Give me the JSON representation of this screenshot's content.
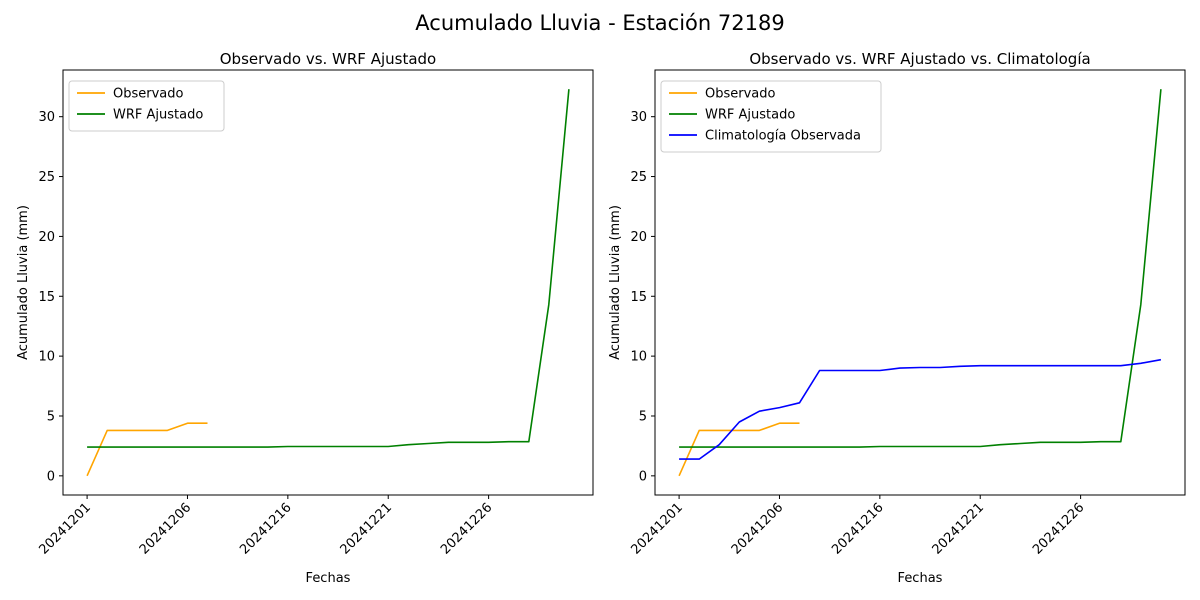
{
  "figure": {
    "suptitle": "Acumulado Lluvia - Estación 72189"
  },
  "chart_data": [
    {
      "type": "line",
      "title": "Observado vs. WRF Ajustado",
      "xlabel": "Fechas",
      "ylabel": "Acumulado Lluvia (mm)",
      "x_tick_labels": [
        "20241201",
        "20241206",
        "20241216",
        "20241221",
        "20241226"
      ],
      "y_ticks": [
        0,
        5,
        10,
        15,
        20,
        25,
        30
      ],
      "ylim": [
        -1.6,
        33.9
      ],
      "legend_position": "top-left",
      "grid": false,
      "series": [
        {
          "name": "Observado",
          "color": "#ffa500",
          "points": [
            [
              0,
              0
            ],
            [
              1,
              3.8
            ],
            [
              2,
              3.8
            ],
            [
              3,
              3.8
            ],
            [
              4,
              3.8
            ],
            [
              5,
              4.4
            ],
            [
              6,
              4.4
            ]
          ]
        },
        {
          "name": "WRF Ajustado",
          "color": "#008000",
          "points": [
            [
              0,
              2.4
            ],
            [
              1,
              2.4
            ],
            [
              2,
              2.4
            ],
            [
              3,
              2.4
            ],
            [
              4,
              2.4
            ],
            [
              5,
              2.4
            ],
            [
              6,
              2.4
            ],
            [
              7,
              2.4
            ],
            [
              8,
              2.4
            ],
            [
              9,
              2.4
            ],
            [
              10,
              2.45
            ],
            [
              11,
              2.45
            ],
            [
              12,
              2.45
            ],
            [
              13,
              2.45
            ],
            [
              14,
              2.45
            ],
            [
              15,
              2.45
            ],
            [
              16,
              2.6
            ],
            [
              17,
              2.7
            ],
            [
              18,
              2.8
            ],
            [
              19,
              2.8
            ],
            [
              20,
              2.8
            ],
            [
              21,
              2.85
            ],
            [
              22,
              2.85
            ],
            [
              23,
              14.3
            ],
            [
              24,
              32.3
            ]
          ]
        }
      ]
    },
    {
      "type": "line",
      "title": "Observado vs. WRF Ajustado vs. Climatología",
      "xlabel": "Fechas",
      "ylabel": "Acumulado Lluvia (mm)",
      "x_tick_labels": [
        "20241201",
        "20241206",
        "20241216",
        "20241221",
        "20241226"
      ],
      "y_ticks": [
        0,
        5,
        10,
        15,
        20,
        25,
        30
      ],
      "ylim": [
        -1.6,
        33.9
      ],
      "legend_position": "top-left",
      "grid": false,
      "series": [
        {
          "name": "Observado",
          "color": "#ffa500",
          "points": [
            [
              0,
              0
            ],
            [
              1,
              3.8
            ],
            [
              2,
              3.8
            ],
            [
              3,
              3.8
            ],
            [
              4,
              3.8
            ],
            [
              5,
              4.4
            ],
            [
              6,
              4.4
            ]
          ]
        },
        {
          "name": "WRF Ajustado",
          "color": "#008000",
          "points": [
            [
              0,
              2.4
            ],
            [
              1,
              2.4
            ],
            [
              2,
              2.4
            ],
            [
              3,
              2.4
            ],
            [
              4,
              2.4
            ],
            [
              5,
              2.4
            ],
            [
              6,
              2.4
            ],
            [
              7,
              2.4
            ],
            [
              8,
              2.4
            ],
            [
              9,
              2.4
            ],
            [
              10,
              2.45
            ],
            [
              11,
              2.45
            ],
            [
              12,
              2.45
            ],
            [
              13,
              2.45
            ],
            [
              14,
              2.45
            ],
            [
              15,
              2.45
            ],
            [
              16,
              2.6
            ],
            [
              17,
              2.7
            ],
            [
              18,
              2.8
            ],
            [
              19,
              2.8
            ],
            [
              20,
              2.8
            ],
            [
              21,
              2.85
            ],
            [
              22,
              2.85
            ],
            [
              23,
              14.3
            ],
            [
              24,
              32.3
            ]
          ]
        },
        {
          "name": "Climatología Observada",
          "color": "#0000ff",
          "points": [
            [
              0,
              1.4
            ],
            [
              1,
              1.4
            ],
            [
              2,
              2.6
            ],
            [
              3,
              4.5
            ],
            [
              4,
              5.4
            ],
            [
              5,
              5.7
            ],
            [
              6,
              6.1
            ],
            [
              7,
              8.8
            ],
            [
              8,
              8.8
            ],
            [
              9,
              8.8
            ],
            [
              10,
              8.8
            ],
            [
              11,
              9.0
            ],
            [
              12,
              9.05
            ],
            [
              13,
              9.05
            ],
            [
              14,
              9.15
            ],
            [
              15,
              9.2
            ],
            [
              16,
              9.2
            ],
            [
              17,
              9.2
            ],
            [
              18,
              9.2
            ],
            [
              19,
              9.2
            ],
            [
              20,
              9.2
            ],
            [
              21,
              9.2
            ],
            [
              22,
              9.2
            ],
            [
              23,
              9.4
            ],
            [
              24,
              9.7
            ]
          ]
        }
      ]
    }
  ]
}
